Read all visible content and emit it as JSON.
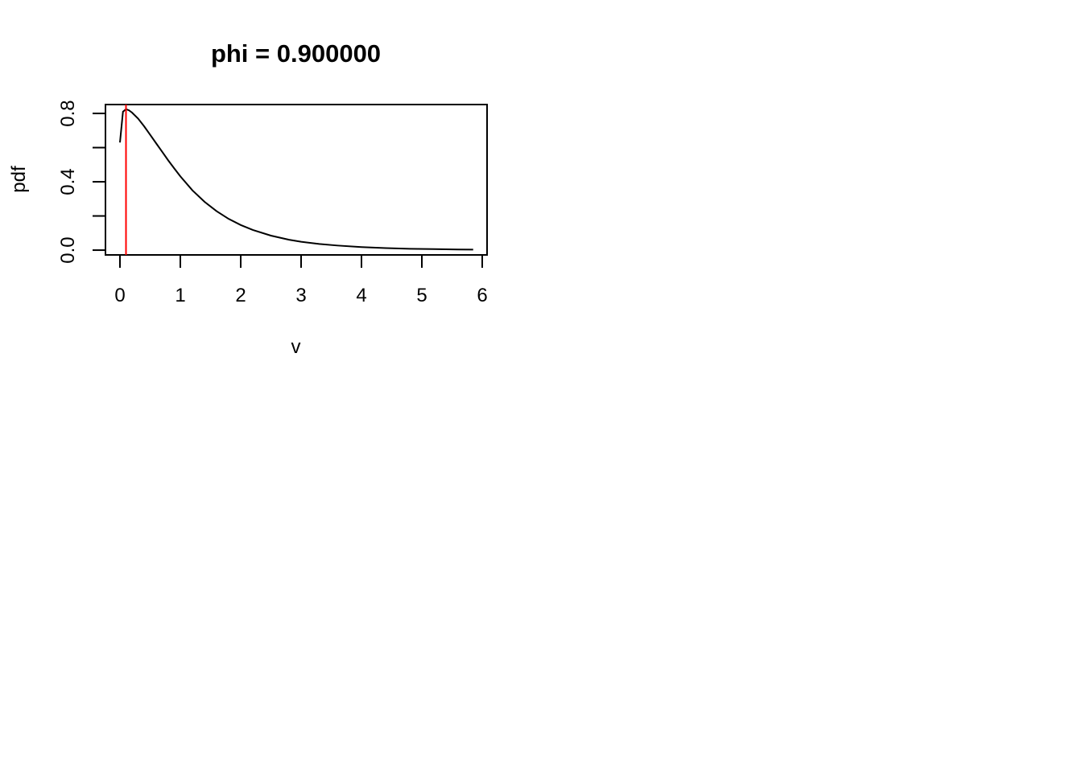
{
  "chart_data": {
    "type": "line",
    "title": "phi = 0.900000",
    "xlabel": "v",
    "ylabel": "pdf",
    "xlim": [
      -0.24,
      6.08
    ],
    "ylim": [
      -0.028,
      0.852
    ],
    "x_ticks": [
      0,
      1,
      2,
      3,
      4,
      5,
      6
    ],
    "y_ticks": [
      0.0,
      0.2,
      0.4,
      0.6,
      0.8
    ],
    "y_tick_labels": [
      "0.0",
      "",
      "0.4",
      "",
      "0.8"
    ],
    "series": [
      {
        "color": "#000000",
        "x": [
          0.0,
          0.05,
          0.1,
          0.15,
          0.2,
          0.3,
          0.4,
          0.5,
          0.6,
          0.7,
          0.8,
          0.9,
          1.0,
          1.2,
          1.4,
          1.6,
          1.8,
          2.0,
          2.2,
          2.5,
          2.8,
          3.0,
          3.3,
          3.6,
          4.0,
          4.4,
          4.8,
          5.2,
          5.6,
          5.85
        ],
        "y": [
          0.63,
          0.81,
          0.825,
          0.818,
          0.805,
          0.77,
          0.725,
          0.675,
          0.625,
          0.575,
          0.525,
          0.478,
          0.432,
          0.35,
          0.283,
          0.228,
          0.183,
          0.147,
          0.118,
          0.085,
          0.061,
          0.049,
          0.036,
          0.027,
          0.018,
          0.012,
          0.008,
          0.006,
          0.004,
          0.003
        ]
      }
    ],
    "vline": {
      "x": 0.1,
      "color": "#ff0000"
    }
  }
}
